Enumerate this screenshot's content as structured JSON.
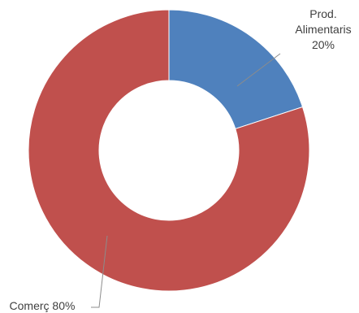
{
  "chart_data": {
    "type": "pie",
    "variant": "doughnut",
    "title": "",
    "legend": "none",
    "slices": [
      {
        "name": "Prod. Alimentaris",
        "value": 20,
        "label_lines": [
          "Prod.",
          "Alimentaris",
          "20%"
        ],
        "color": "#4f81bd"
      },
      {
        "name": "Comerç",
        "value": 80,
        "label_lines": [
          "Comerç 80%"
        ],
        "color": "#c0504d"
      }
    ]
  }
}
